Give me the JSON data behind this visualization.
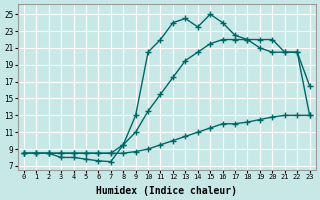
{
  "bg_color": "#c8e8e8",
  "grid_color": "#ffffff",
  "line_color": "#006666",
  "line_width": 1.0,
  "marker": "+",
  "marker_size": 4,
  "marker_ew": 1.0,
  "xlabel": "Humidex (Indice chaleur)",
  "xlabel_fontsize": 7,
  "yticks": [
    7,
    9,
    11,
    13,
    15,
    17,
    19,
    21,
    23,
    25
  ],
  "xticks": [
    0,
    1,
    2,
    3,
    4,
    5,
    6,
    7,
    8,
    9,
    10,
    11,
    12,
    13,
    14,
    15,
    16,
    17,
    18,
    19,
    20,
    21,
    22,
    23
  ],
  "xlim": [
    -0.5,
    23.5
  ],
  "ylim": [
    6.5,
    26.2
  ],
  "lineA_x": [
    0,
    1,
    2,
    3,
    4,
    5,
    6,
    7,
    8,
    9,
    10,
    11,
    12,
    13,
    14,
    15,
    16,
    17,
    18,
    19,
    20,
    21,
    22,
    23
  ],
  "lineA_y": [
    8.5,
    8.5,
    8.5,
    8.0,
    8.0,
    7.8,
    7.6,
    7.5,
    9.5,
    13.0,
    20.5,
    22.0,
    24.0,
    24.5,
    23.5,
    25.0,
    24.0,
    22.5,
    22.0,
    22.0,
    22.0,
    20.5,
    20.5,
    16.5
  ],
  "lineB_x": [
    0,
    1,
    2,
    3,
    4,
    5,
    6,
    7,
    8,
    9,
    10,
    11,
    12,
    13,
    14,
    15,
    16,
    17,
    18,
    19,
    20,
    21,
    22,
    23
  ],
  "lineB_y": [
    8.5,
    8.5,
    8.5,
    8.5,
    8.5,
    8.5,
    8.5,
    8.5,
    9.5,
    11.0,
    13.5,
    15.5,
    17.5,
    19.5,
    20.5,
    21.5,
    22.0,
    22.0,
    22.0,
    21.0,
    20.5,
    20.5,
    20.5,
    13.0
  ],
  "lineC_x": [
    0,
    1,
    2,
    3,
    4,
    5,
    6,
    7,
    8,
    9,
    10,
    11,
    12,
    13,
    14,
    15,
    16,
    17,
    18,
    19,
    20,
    21,
    22,
    23
  ],
  "lineC_y": [
    8.5,
    8.5,
    8.5,
    8.5,
    8.5,
    8.5,
    8.5,
    8.5,
    8.5,
    8.7,
    9.0,
    9.5,
    10.0,
    10.5,
    11.0,
    11.5,
    12.0,
    12.0,
    12.2,
    12.5,
    12.8,
    13.0,
    13.0,
    13.0
  ]
}
